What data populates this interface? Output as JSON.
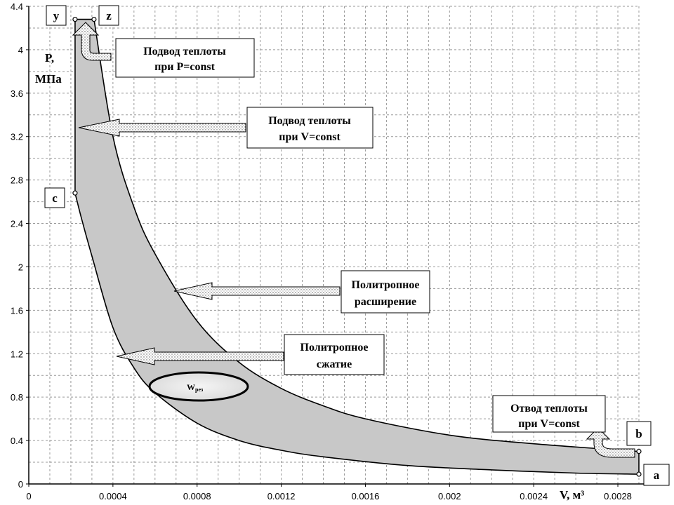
{
  "chart_data": {
    "type": "area",
    "xlabel": "V, м³",
    "ylabel_line1": "P,",
    "ylabel_line2": "МПа",
    "xlim": [
      0,
      0.0029
    ],
    "ylim": [
      0,
      4.4
    ],
    "x_ticks": [
      0,
      0.0004,
      0.0008,
      0.0012,
      0.0016,
      0.002,
      0.0024,
      0.0028
    ],
    "x_tick_labels": [
      "0",
      "0.0004",
      "0.0008",
      "0.0012",
      "0.0016",
      "0.002",
      "0.0024",
      "0.0028"
    ],
    "y_ticks": [
      0,
      0.4,
      0.8,
      1.2,
      1.6,
      2,
      2.4,
      2.8,
      3.2,
      3.6,
      4,
      4.4
    ],
    "y_tick_labels": [
      "0",
      "0.4",
      "0.8",
      "1.2",
      "1.6",
      "2",
      "2.4",
      "2.8",
      "3.2",
      "3.6",
      "4",
      "4.4"
    ],
    "grid": true,
    "points": [
      {
        "name": "a",
        "x": 0.0029,
        "y": 0.09
      },
      {
        "name": "b",
        "x": 0.0029,
        "y": 0.3
      },
      {
        "name": "c",
        "x": 0.00022,
        "y": 2.68
      },
      {
        "name": "y",
        "x": 0.00022,
        "y": 4.28
      },
      {
        "name": "z",
        "x": 0.00031,
        "y": 4.28
      }
    ],
    "compression_curve": {
      "x": [
        0.0029,
        0.0026,
        0.0022,
        0.0018,
        0.0014,
        0.0012,
        0.001,
        0.0008,
        0.0006,
        0.0005,
        0.0004,
        0.0003,
        0.00025,
        0.00022
      ],
      "y": [
        0.09,
        0.1,
        0.13,
        0.17,
        0.25,
        0.31,
        0.4,
        0.56,
        0.84,
        1.07,
        1.44,
        2.1,
        2.45,
        2.68
      ]
    },
    "expansion_curve": {
      "x": [
        0.00031,
        0.0004,
        0.0005,
        0.0006,
        0.0008,
        0.001,
        0.0012,
        0.0014,
        0.0016,
        0.002,
        0.0024,
        0.0029
      ],
      "y": [
        4.28,
        3.2,
        2.55,
        2.12,
        1.5,
        1.12,
        0.88,
        0.72,
        0.6,
        0.45,
        0.37,
        0.3
      ]
    },
    "fill_color": "#c8c8c8",
    "annotations": [
      {
        "id": "heat_p_const",
        "line1": "Подвод теплоты",
        "line2": "при P=const"
      },
      {
        "id": "heat_v_const",
        "line1": "Подвод теплоты",
        "line2": "при V=const"
      },
      {
        "id": "polytropic_expansion",
        "line1": "Политропное",
        "line2": "расширение"
      },
      {
        "id": "polytropic_compression",
        "line1": "Политропное",
        "line2": "сжатие"
      },
      {
        "id": "heat_removal",
        "line1": "Отвод теплоты",
        "line2": "при V=const"
      }
    ],
    "work_label": "W",
    "work_label_sub": "рез"
  }
}
